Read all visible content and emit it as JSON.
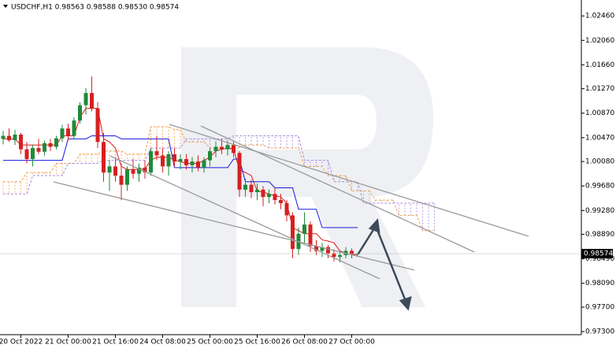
{
  "chart_data": {
    "type": "candlestick",
    "title": "USDCHF,H1 0.98563 0.98588 0.98530 0.98574",
    "categories": [
      null,
      null,
      null,
      "20 Oct 2022",
      null,
      null,
      null,
      null,
      null,
      null,
      null,
      "21 Oct 00:00",
      null,
      null,
      null,
      null,
      null,
      null,
      null,
      "21 Oct 16:00",
      null,
      null,
      null,
      null,
      null,
      null,
      null,
      "24 Oct 08:00",
      null,
      null,
      null,
      null,
      null,
      null,
      null,
      "25 Oct 00:00",
      null,
      null,
      null,
      null,
      null,
      null,
      null,
      "25 Oct 16:00",
      null,
      null,
      null,
      null,
      null,
      null,
      null,
      "26 Oct 08:00",
      null,
      null,
      null,
      null,
      null,
      null,
      null,
      "27 Oct 00:00",
      null,
      null,
      null,
      null,
      null,
      null,
      null,
      null,
      null,
      null,
      null,
      null,
      null,
      null
    ],
    "open": [
      1.0045,
      1.005,
      1.0043,
      1.0052,
      1.0028,
      1.0012,
      1.003,
      1.0024,
      1.0038,
      1.0032,
      1.0046,
      1.0062,
      1.005,
      1.0075,
      1.01,
      1.012,
      1.0095,
      1.004,
      0.999,
      1.0,
      0.9985,
      0.997,
      0.9995,
      0.9988,
      0.9998,
      0.999,
      1.0025,
      1.0018,
      1.0,
      1.002,
      1.0008,
      1.0012,
      1.0002,
      1.0008,
      0.9998,
      1.001,
      1.0025,
      1.0032,
      1.0028,
      1.0035,
      1.0022,
      0.9962,
      0.997,
      0.9958,
      0.9962,
      0.995,
      0.9955,
      0.9945,
      0.994,
      0.992,
      0.9865,
      0.989,
      0.9905,
      0.987,
      0.9862,
      0.9868,
      0.9858,
      0.9852,
      0.9855,
      0.9862,
      0.98563,
      null,
      null,
      null,
      null,
      null,
      null,
      null,
      null,
      null,
      null,
      null,
      null,
      null
    ],
    "high": [
      1.0058,
      1.0062,
      1.006,
      1.0055,
      1.004,
      1.0035,
      1.0045,
      1.0042,
      1.0045,
      1.005,
      1.0068,
      1.007,
      1.008,
      1.0105,
      1.0128,
      1.0147,
      1.0105,
      1.0055,
      1.001,
      1.0015,
      1.0005,
      1.0,
      1.0012,
      1.0005,
      1.001,
      1.003,
      1.005,
      1.003,
      1.0025,
      1.003,
      1.002,
      1.002,
      1.0015,
      1.0018,
      1.0015,
      1.003,
      1.004,
      1.0045,
      1.0042,
      1.004,
      1.0025,
      0.998,
      0.9978,
      0.9972,
      0.9968,
      0.9962,
      0.9965,
      0.9955,
      0.9945,
      0.9925,
      0.99,
      0.9925,
      0.991,
      0.988,
      0.9875,
      0.9872,
      0.9865,
      0.986,
      0.9868,
      0.9866,
      0.98588,
      null,
      null,
      null,
      null,
      null,
      null,
      null,
      null,
      null,
      null,
      null,
      null,
      null
    ],
    "low": [
      1.0036,
      1.004,
      1.0035,
      1.002,
      1.0005,
      1.0,
      1.002,
      1.0018,
      1.0025,
      1.0028,
      1.004,
      1.0042,
      1.0045,
      1.007,
      1.0085,
      1.009,
      1.003,
      0.9975,
      0.996,
      0.9975,
      0.9945,
      0.996,
      0.998,
      0.9975,
      0.998,
      0.9985,
      1.001,
      0.999,
      0.9985,
      1.0,
      0.9995,
      0.9995,
      0.999,
      0.9992,
      0.999,
      1.0,
      1.0015,
      1.002,
      1.0018,
      1.0015,
      0.995,
      0.995,
      0.9948,
      0.9945,
      0.9935,
      0.994,
      0.9938,
      0.993,
      0.991,
      0.985,
      0.9855,
      0.9875,
      0.986,
      0.9855,
      0.9852,
      0.985,
      0.9845,
      0.9843,
      0.985,
      0.985,
      0.9853,
      null,
      null,
      null,
      null,
      null,
      null,
      null,
      null,
      null,
      null,
      null,
      null,
      null
    ],
    "close": [
      1.005,
      1.0043,
      1.0052,
      1.0028,
      1.0012,
      1.003,
      1.0024,
      1.0038,
      1.0032,
      1.0046,
      1.0062,
      1.005,
      1.0075,
      1.01,
      1.012,
      1.0095,
      1.004,
      0.999,
      1.0,
      0.9985,
      0.997,
      0.9995,
      0.9988,
      0.9998,
      0.999,
      1.0025,
      1.0018,
      1.0,
      1.002,
      1.0008,
      1.0012,
      1.0002,
      1.0008,
      0.9998,
      1.001,
      1.0025,
      1.0032,
      1.0028,
      1.0035,
      1.0022,
      0.9962,
      0.997,
      0.9958,
      0.9962,
      0.995,
      0.9955,
      0.9945,
      0.994,
      0.992,
      0.9865,
      0.989,
      0.9905,
      0.987,
      0.9862,
      0.9868,
      0.9858,
      0.9852,
      0.9855,
      0.9862,
      0.9856,
      0.98574,
      null,
      null,
      null,
      null,
      null,
      null,
      null,
      null,
      null,
      null,
      null,
      null,
      null
    ],
    "up_color": "#1f8a3a",
    "down_color": "#d62020",
    "lines": [
      {
        "color": "#e01818",
        "values": [
          1.0045,
          1.0045,
          1.0045,
          1.0035,
          1.0035,
          1.0035,
          1.0035,
          1.0035,
          1.0035,
          1.0035,
          1.005,
          1.005,
          1.005,
          1.008,
          1.0095,
          1.0095,
          1.0095,
          1.0045,
          1.004,
          1.003,
          1.0,
          0.9995,
          0.9995,
          0.9995,
          0.9996,
          1.001,
          1.0015,
          1.0015,
          1.0015,
          1.001,
          1.0008,
          1.0005,
          1.0005,
          1.0005,
          1.001,
          1.0015,
          1.0025,
          1.0028,
          1.003,
          1.0028,
          0.9995,
          0.999,
          0.9985,
          0.996,
          0.9958,
          0.9955,
          0.9952,
          0.995,
          0.994,
          0.99,
          0.9895,
          0.989,
          0.989,
          0.989,
          0.988,
          0.9878,
          0.9875,
          0.9862,
          0.9858,
          0.9856,
          0.9856,
          null,
          null,
          null,
          null,
          null,
          null,
          null,
          null,
          null,
          null,
          null,
          null,
          null
        ]
      },
      {
        "color": "#1818e0",
        "values": [
          1.001,
          1.001,
          1.001,
          1.001,
          1.001,
          1.001,
          1.001,
          1.001,
          1.001,
          1.001,
          1.001,
          1.0045,
          1.0045,
          1.0045,
          1.0045,
          1.005,
          1.005,
          1.005,
          1.005,
          1.005,
          1.0045,
          1.0045,
          1.0045,
          1.0045,
          1.0045,
          1.0045,
          1.0045,
          1.0045,
          1.0045,
          0.9998,
          0.9998,
          0.9998,
          0.9998,
          0.9998,
          0.9998,
          0.9998,
          0.9998,
          0.9998,
          0.9998,
          1.0012,
          1.0012,
          0.9975,
          0.9975,
          0.9975,
          0.9975,
          0.9975,
          0.9965,
          0.9965,
          0.9965,
          0.9965,
          0.993,
          0.993,
          0.993,
          0.993,
          0.99,
          0.99,
          0.99,
          0.99,
          0.99,
          0.99,
          0.99,
          null,
          null,
          null,
          null,
          null,
          null,
          null,
          null,
          null,
          null,
          null,
          null,
          null
        ]
      }
    ],
    "cloud": {
      "span_a_color": "#f0a050",
      "span_b_color": "#a888e0",
      "span_a": [
        0.9975,
        0.9975,
        0.9975,
        0.9975,
        0.999,
        0.999,
        0.999,
        0.999,
        0.999,
        1.0005,
        1.0005,
        1.0005,
        1.0005,
        1.002,
        1.002,
        1.002,
        1.002,
        1.0025,
        1.0025,
        1.0025,
        1.0025,
        1.002,
        1.002,
        1.002,
        1.002,
        1.0065,
        1.0065,
        1.0065,
        1.0065,
        1.006,
        1.006,
        1.004,
        1.004,
        1.004,
        1.004,
        1.003,
        1.003,
        1.003,
        1.003,
        1.003,
        1.003,
        1.0035,
        1.0035,
        1.0035,
        1.0035,
        1.003,
        1.003,
        1.003,
        1.003,
        1.003,
        1.003,
        1.0,
        1.0,
        1.0,
        1.0,
        0.9985,
        0.9985,
        0.9985,
        0.9985,
        0.996,
        0.996,
        0.996,
        0.996,
        0.9945,
        0.9945,
        0.9945,
        0.9945,
        0.992,
        0.992,
        0.992,
        0.992,
        0.9895,
        0.9895,
        0.9895
      ],
      "span_b": [
        0.9955,
        0.9955,
        0.9955,
        0.9955,
        0.9955,
        0.9985,
        0.9985,
        0.9985,
        0.9985,
        0.9985,
        0.9985,
        1.0005,
        1.0005,
        1.0005,
        1.0005,
        1.0005,
        1.0005,
        1.001,
        1.001,
        1.001,
        1.001,
        1.001,
        1.001,
        1.001,
        1.001,
        1.003,
        1.003,
        1.003,
        1.003,
        1.003,
        1.003,
        1.0045,
        1.0045,
        1.0045,
        1.0045,
        1.0045,
        1.0045,
        1.0045,
        1.0045,
        1.005,
        1.005,
        1.005,
        1.005,
        1.005,
        1.005,
        1.005,
        1.005,
        1.005,
        1.005,
        1.005,
        1.005,
        1.001,
        1.001,
        1.001,
        1.001,
        1.001,
        0.9975,
        0.9975,
        0.9975,
        0.9975,
        0.9975,
        0.994,
        0.994,
        0.994,
        0.994,
        0.994,
        0.994,
        0.994,
        0.994,
        0.994,
        0.994,
        0.994,
        0.994,
        0.994
      ]
    },
    "last_price": 0.98574,
    "ylim": [
      0.9725,
      1.0272
    ],
    "yticks": [
      {
        "value": 1.0246,
        "label": "1.02460"
      },
      {
        "value": 1.0206,
        "label": "1.02060"
      },
      {
        "value": 1.0166,
        "label": "1.01660"
      },
      {
        "value": 1.0127,
        "label": "1.01270"
      },
      {
        "value": 1.0087,
        "label": "1.00870"
      },
      {
        "value": 1.0047,
        "label": "1.00470"
      },
      {
        "value": 1.0008,
        "label": "1.00080"
      },
      {
        "value": 0.9968,
        "label": "0.99680"
      },
      {
        "value": 0.9928,
        "label": "0.99280"
      },
      {
        "value": 0.9889,
        "label": "0.98890"
      },
      {
        "value": 0.9849,
        "label": "0.98490"
      },
      {
        "value": 0.9809,
        "label": "0.98090"
      },
      {
        "value": 0.977,
        "label": "0.97700"
      },
      {
        "value": 0.973,
        "label": "0.97300"
      }
    ],
    "grid": false
  }
}
